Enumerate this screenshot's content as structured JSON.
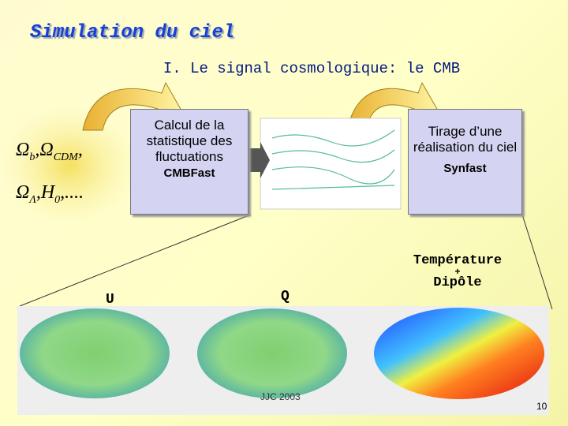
{
  "header": {
    "title": "Simulation du ciel",
    "subtitle": "I. Le signal cosmologique: le CMB"
  },
  "formula": {
    "lines": [
      {
        "terms": [
          {
            "base": "Ω",
            "sub": "b"
          },
          {
            "base": "Ω",
            "sub": "CDM"
          }
        ],
        "separator": ",",
        "ending": ","
      },
      {
        "terms": [
          {
            "base": "Ω",
            "sub": "Λ"
          },
          {
            "base": "H",
            "sub": "0"
          }
        ],
        "separator": ",",
        "ending": ",...."
      }
    ]
  },
  "boxes": [
    {
      "text": "Calcul de la statistique des fluctuations",
      "tool": "CMBFast"
    },
    {
      "text": "Tirage d’une réalisation du ciel",
      "tool": "Synfast"
    }
  ],
  "maps": [
    {
      "label": "U"
    },
    {
      "label": "Q"
    },
    {
      "label": "Température",
      "plus": "+",
      "label2": "Dipôle"
    }
  ],
  "footer": {
    "author": "JJC 2003",
    "page": "10"
  }
}
